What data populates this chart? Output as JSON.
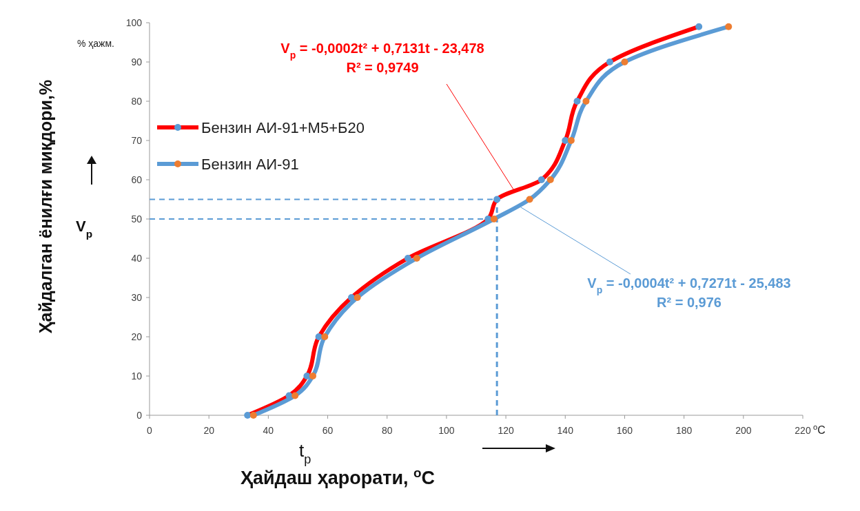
{
  "chart_data": {
    "type": "line",
    "xlabel": "Ҳайдаш ҳарорати, $^{o}$C",
    "ylabel": "Ҳайдалган ёнилғи миқдори,%",
    "series": [
      {
        "name": "Бензин АИ-91+М5+Б20",
        "color": "#ff0000",
        "colors": [
          "#5b9bd5",
          "#5b9bd5",
          "#5b9bd5",
          "#5b9bd5",
          "#5b9bd5",
          "#5b9bd5",
          "#5b9bd5",
          "#5b9bd5",
          "#5b9bd5",
          "#5b9bd5",
          "#5b9bd5",
          "#5b9bd5",
          "#5b9bd5"
        ],
        "x": [
          33,
          47,
          53,
          57,
          68,
          87,
          114,
          117,
          132,
          140,
          144,
          155,
          185
        ],
        "values": [
          0,
          5,
          10,
          20,
          30,
          40,
          50,
          55,
          60,
          70,
          80,
          90,
          99
        ]
      },
      {
        "name": "Бензин АИ-91",
        "color": "#5b9bd5",
        "colors": [
          "#ed7d31",
          "#ed7d31",
          "#ed7d31",
          "#ed7d31",
          "#ed7d31",
          "#ed7d31",
          "#ed7d31",
          "#ed7d31",
          "#ed7d31",
          "#ed7d31",
          "#ed7d31",
          "#ed7d31",
          "#ed7d31"
        ],
        "x": [
          35,
          49,
          55,
          59,
          70,
          90,
          116,
          128,
          135,
          142,
          147,
          160,
          195
        ],
        "values": [
          0,
          5,
          10,
          20,
          30,
          40,
          50,
          55,
          60,
          70,
          80,
          90,
          99
        ]
      }
    ],
    "xlim": [
      0,
      220
    ],
    "xticks": [
      0,
      20,
      40,
      60,
      80,
      100,
      120,
      140,
      160,
      180,
      200,
      220
    ],
    "ylim": [
      0,
      100
    ],
    "yticks": [
      0,
      10,
      20,
      30,
      40,
      50,
      60,
      70,
      80,
      90,
      100
    ],
    "grid": false,
    "legend": "top left",
    "marker": "circle",
    "line_style": "solid",
    "ref_lines": [
      {
        "axis": "y",
        "value": 55,
        "color": "#5b9bd5",
        "line_style": "dashed"
      },
      {
        "axis": "y",
        "value": 50,
        "color": "#5b9bd5",
        "line_style": "dashed"
      },
      {
        "axis": "x",
        "value": 117,
        "color": "#5b9bd5",
        "line_style": "dashed"
      }
    ],
    "annotations": [
      {
        "text": "V$_{p}$ = -0,0002t² + 0,7131t - 23,478\nR² = 0,9749",
        "x": 123,
        "y": 57
      },
      {
        "text": "V$_{p}$ = -0,0004t² + 0,7271t - 25,483\nR² = 0,976",
        "x": 125,
        "y": 53
      },
      "% ҳажм.",
      "V$_{p}$",
      "t$_{p}$",
      "$^{o}$C"
    ]
  }
}
